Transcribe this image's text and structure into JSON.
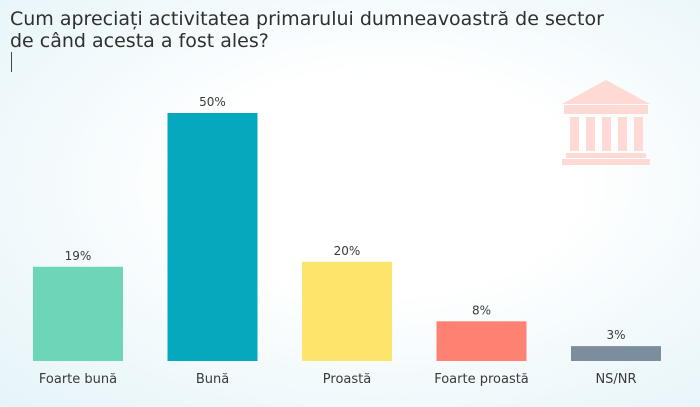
{
  "title_line1": "Cum apreciați activitatea primarului dumneavoastră de sector",
  "title_line2": "de când acesta a fost ales?",
  "icon": "government-building-icon",
  "chart_data": {
    "type": "bar",
    "title": "Cum apreciați activitatea primarului dumneavoastră de sector de când acesta a fost ales?",
    "categories": [
      "Foarte bună",
      "Bună",
      "Proastă",
      "Foarte proastă",
      "NS/NR"
    ],
    "values": [
      19,
      50,
      20,
      8,
      3
    ],
    "value_labels": [
      "19%",
      "50%",
      "20%",
      "8%",
      "3%"
    ],
    "colors": [
      "#6dd5b8",
      "#05a8bd",
      "#fde46b",
      "#fe8172",
      "#7c8d9e"
    ],
    "ylim": [
      0,
      50
    ],
    "grid": false,
    "legend": "none"
  }
}
